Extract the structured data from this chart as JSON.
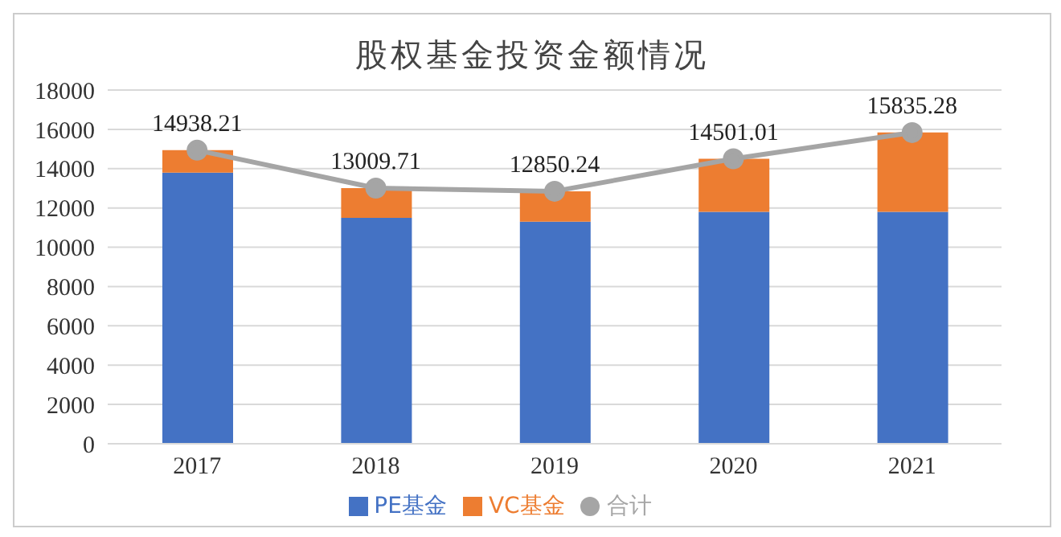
{
  "chart_data": {
    "type": "bar",
    "title": "股权基金投资金额情况",
    "categories": [
      "2017",
      "2018",
      "2019",
      "2020",
      "2021"
    ],
    "stacked": true,
    "series": [
      {
        "name": "PE基金",
        "color": "#4472c4",
        "values": [
          13800,
          11500,
          11300,
          11800,
          11800
        ]
      },
      {
        "name": "VC基金",
        "color": "#ed7d31",
        "values": [
          1140,
          1510,
          1550,
          2700,
          4040
        ]
      },
      {
        "name": "合计",
        "type": "line",
        "color": "#a5a5a5",
        "marker": "circle",
        "values": [
          14938.21,
          13009.71,
          12850.24,
          14501.01,
          15835.28
        ],
        "value_labels": [
          "14938.21",
          "13009.71",
          "12850.24",
          "14501.01",
          "15835.28"
        ]
      }
    ],
    "ylim": [
      0,
      18000
    ],
    "yticks": [
      0,
      2000,
      4000,
      6000,
      8000,
      10000,
      12000,
      14000,
      16000,
      18000
    ],
    "grid": "y",
    "legend": "bottom"
  }
}
